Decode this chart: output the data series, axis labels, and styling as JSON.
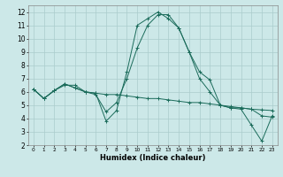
{
  "xlabel": "Humidex (Indice chaleur)",
  "background_color": "#cce8e8",
  "line_color": "#1a6b5a",
  "grid_color": "#aacccc",
  "xlim": [
    -0.5,
    23.5
  ],
  "ylim": [
    2,
    12.5
  ],
  "yticks": [
    2,
    3,
    4,
    5,
    6,
    7,
    8,
    9,
    10,
    11,
    12
  ],
  "xticks": [
    0,
    1,
    2,
    3,
    4,
    5,
    6,
    7,
    8,
    9,
    10,
    11,
    12,
    13,
    14,
    15,
    16,
    17,
    18,
    19,
    20,
    21,
    22,
    23
  ],
  "series1_y": [
    6.2,
    5.5,
    6.1,
    6.6,
    6.3,
    6.0,
    5.9,
    5.8,
    5.8,
    5.7,
    5.6,
    5.5,
    5.5,
    5.4,
    5.3,
    5.2,
    5.2,
    5.1,
    5.0,
    4.9,
    4.8,
    4.7,
    4.65,
    4.6
  ],
  "series2_y": [
    6.2,
    5.5,
    6.1,
    6.5,
    6.5,
    6.0,
    5.9,
    3.8,
    4.6,
    7.5,
    11.0,
    11.5,
    12.0,
    11.5,
    10.8,
    9.0,
    7.5,
    6.9,
    5.0,
    4.8,
    4.7,
    3.5,
    2.3,
    4.2
  ],
  "series3_y": [
    6.2,
    5.5,
    6.1,
    6.6,
    6.3,
    6.0,
    5.8,
    4.5,
    5.2,
    7.0,
    9.3,
    11.0,
    11.8,
    11.8,
    10.8,
    9.0,
    7.0,
    6.0,
    5.0,
    4.8,
    4.8,
    4.7,
    4.2,
    4.1
  ]
}
